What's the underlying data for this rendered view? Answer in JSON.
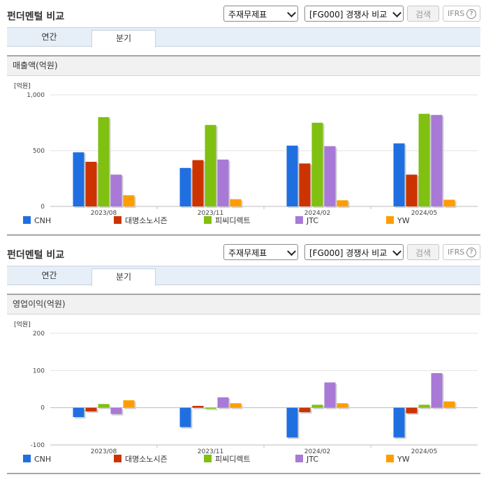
{
  "panels": [
    {
      "title": "펀더멘털 비교",
      "select1": "주재무제표",
      "select2": "[FG000] 경쟁사 비교",
      "search_label": "검색",
      "ifrs_label": "IFRS",
      "ifrs_help": "?",
      "tabs": [
        {
          "label": "연간"
        },
        {
          "label": "분기"
        }
      ],
      "active_tab": 1,
      "section_title": "매출액(억원)"
    },
    {
      "title": "펀더멘털 비교",
      "select1": "주재무제표",
      "select2": "[FG000] 경쟁사 비교",
      "search_label": "검색",
      "ifrs_label": "IFRS",
      "ifrs_help": "?",
      "tabs": [
        {
          "label": "연간"
        },
        {
          "label": "분기"
        }
      ],
      "active_tab": 1,
      "section_title": "영업이익(억원)"
    }
  ],
  "colors": {
    "CNH": "#1f6fe0",
    "대명소노시즌": "#cc3300",
    "피씨디렉트": "#80c010",
    "JTC": "#a879d6",
    "YW": "#ff9d00"
  },
  "chart_data": [
    {
      "type": "bar",
      "title": "매출액(억원)",
      "unit_label": "[억원]",
      "categories": [
        "2023/08",
        "2023/11",
        "2024/02",
        "2024/05"
      ],
      "yticks": [
        0,
        500,
        "1,000"
      ],
      "ylim": [
        0,
        1000
      ],
      "grid": true,
      "legend_position": "bottom",
      "series": [
        {
          "name": "CNH",
          "values": [
            485,
            345,
            545,
            565
          ]
        },
        {
          "name": "대명소노시즌",
          "values": [
            400,
            415,
            385,
            285
          ]
        },
        {
          "name": "피씨디렉트",
          "values": [
            800,
            730,
            750,
            830
          ]
        },
        {
          "name": "JTC",
          "values": [
            285,
            420,
            540,
            820
          ]
        },
        {
          "name": "YW",
          "values": [
            100,
            65,
            55,
            60
          ]
        }
      ]
    },
    {
      "type": "bar",
      "title": "영업이익(억원)",
      "unit_label": "[억원]",
      "categories": [
        "2023/08",
        "2023/11",
        "2024/02",
        "2024/05"
      ],
      "yticks": [
        -100,
        0,
        100,
        200
      ],
      "ylim": [
        -100,
        200
      ],
      "grid": true,
      "legend_position": "bottom",
      "series": [
        {
          "name": "CNH",
          "values": [
            -25,
            -52,
            -80,
            -80
          ]
        },
        {
          "name": "대명소노시즌",
          "values": [
            -10,
            5,
            -12,
            -15
          ]
        },
        {
          "name": "피씨디렉트",
          "values": [
            10,
            -3,
            8,
            8
          ]
        },
        {
          "name": "JTC",
          "values": [
            -17,
            28,
            68,
            93
          ]
        },
        {
          "name": "YW",
          "values": [
            20,
            12,
            12,
            17
          ]
        }
      ]
    }
  ]
}
